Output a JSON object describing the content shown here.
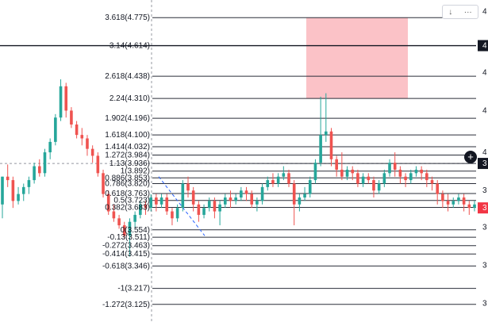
{
  "chart_data": {
    "type": "candlestick",
    "overlay": "fibonacci-retracement",
    "fib_levels": [
      {
        "label": "3.618(4.775)",
        "price": 4.775
      },
      {
        "label": "3.14(4.614)",
        "price": 4.614
      },
      {
        "label": "2.618(4.438)",
        "price": 4.438
      },
      {
        "label": "2.24(4.310)",
        "price": 4.31
      },
      {
        "label": "1.902(4.196)",
        "price": 4.196
      },
      {
        "label": "1.618(4.100)",
        "price": 4.1
      },
      {
        "label": "1.414(4.032)",
        "price": 4.032
      },
      {
        "label": "1.272(3.984)",
        "price": 3.984
      },
      {
        "label": "1.13(3.936)",
        "price": 3.936
      },
      {
        "label": "1(3.892)",
        "price": 3.892
      },
      {
        "label": "0.886(3.853)",
        "price": 3.853
      },
      {
        "label": "0.786(3.820)",
        "price": 3.82
      },
      {
        "label": "0.618(3.763)",
        "price": 3.763
      },
      {
        "label": "0.5(3.723)",
        "price": 3.723
      },
      {
        "label": "0.382(3.683)",
        "price": 3.683
      },
      {
        "label": "0(3.554)",
        "price": 3.554
      },
      {
        "label": "-0.13(3.511)",
        "price": 3.511
      },
      {
        "label": "-0.272(3.463)",
        "price": 3.463
      },
      {
        "label": "-0.414(3.415)",
        "price": 3.415
      },
      {
        "label": "-0.618(3.346)",
        "price": 3.346
      },
      {
        "label": "-1(3.217)",
        "price": 3.217
      },
      {
        "label": "-1.272(3.125)",
        "price": 3.125
      }
    ],
    "price_range": [
      3.06,
      4.84
    ],
    "right_axis_tags": [
      {
        "text": "4",
        "price": 4.614,
        "style": "dark"
      },
      {
        "text": "3",
        "price": 3.936,
        "style": "dark"
      },
      {
        "text": "3",
        "price": 3.68,
        "style": "red"
      }
    ],
    "right_axis_ticks": [
      {
        "text": "4",
        "price": 4.81
      },
      {
        "text": "4",
        "price": 4.46
      },
      {
        "text": "4",
        "price": 4.24
      },
      {
        "text": "4",
        "price": 4.0
      },
      {
        "text": "3",
        "price": 3.78
      },
      {
        "text": "3",
        "price": 3.57
      },
      {
        "text": "3",
        "price": 3.35
      },
      {
        "text": "3",
        "price": 3.13
      }
    ],
    "current_price_line": 3.936,
    "highlight_zone": {
      "price_top": 4.775,
      "price_bottom": 4.31,
      "color": "#f23645"
    },
    "candles": [
      [
        3.7,
        3.86,
        3.86,
        3.62
      ],
      [
        3.86,
        3.84,
        3.93,
        3.8
      ],
      [
        3.84,
        3.72,
        3.86,
        3.68
      ],
      [
        3.72,
        3.76,
        3.8,
        3.7
      ],
      [
        3.76,
        3.8,
        3.82,
        3.72
      ],
      [
        3.8,
        3.84,
        3.86,
        3.76
      ],
      [
        3.84,
        3.92,
        3.94,
        3.82
      ],
      [
        3.92,
        3.88,
        3.96,
        3.86
      ],
      [
        3.88,
        4.0,
        4.02,
        3.86
      ],
      [
        4.0,
        4.06,
        4.08,
        3.96
      ],
      [
        4.06,
        4.2,
        4.22,
        4.04
      ],
      [
        4.2,
        4.38,
        4.42,
        4.18
      ],
      [
        4.38,
        4.24,
        4.4,
        4.2
      ],
      [
        4.24,
        4.16,
        4.26,
        4.14
      ],
      [
        4.16,
        4.1,
        4.18,
        4.08
      ],
      [
        4.1,
        4.08,
        4.14,
        4.04
      ],
      [
        4.08,
        4.02,
        4.1,
        3.98
      ],
      [
        4.02,
        3.98,
        4.04,
        3.94
      ],
      [
        3.98,
        3.88,
        4.0,
        3.86
      ],
      [
        3.88,
        3.76,
        3.9,
        3.74
      ],
      [
        3.76,
        3.66,
        3.78,
        3.64
      ],
      [
        3.66,
        3.62,
        3.7,
        3.6
      ],
      [
        3.62,
        3.58,
        3.64,
        3.56
      ],
      [
        3.58,
        3.52,
        3.6,
        3.5
      ],
      [
        3.52,
        3.6,
        3.62,
        3.4
      ],
      [
        3.6,
        3.64,
        3.66,
        3.56
      ],
      [
        3.64,
        3.7,
        3.72,
        3.62
      ],
      [
        3.7,
        3.68,
        3.72,
        3.64
      ],
      [
        3.68,
        3.74,
        3.76,
        3.66
      ],
      [
        3.74,
        3.7,
        3.76,
        3.66
      ],
      [
        3.7,
        3.74,
        3.76,
        3.68
      ],
      [
        3.74,
        3.66,
        3.76,
        3.64
      ],
      [
        3.66,
        3.62,
        3.68,
        3.58
      ],
      [
        3.62,
        3.68,
        3.7,
        3.6
      ],
      [
        3.68,
        3.82,
        3.84,
        3.66
      ],
      [
        3.82,
        3.78,
        3.86,
        3.74
      ],
      [
        3.78,
        3.7,
        3.8,
        3.66
      ],
      [
        3.7,
        3.64,
        3.72,
        3.6
      ],
      [
        3.64,
        3.68,
        3.7,
        3.62
      ],
      [
        3.68,
        3.72,
        3.74,
        3.66
      ],
      [
        3.72,
        3.66,
        3.74,
        3.62
      ],
      [
        3.66,
        3.7,
        3.72,
        3.58
      ],
      [
        3.7,
        3.74,
        3.76,
        3.68
      ],
      [
        3.74,
        3.72,
        3.78,
        3.68
      ],
      [
        3.72,
        3.74,
        3.76,
        3.7
      ],
      [
        3.74,
        3.78,
        3.8,
        3.72
      ],
      [
        3.78,
        3.76,
        3.8,
        3.72
      ],
      [
        3.76,
        3.7,
        3.78,
        3.68
      ],
      [
        3.7,
        3.72,
        3.74,
        3.66
      ],
      [
        3.72,
        3.8,
        3.82,
        3.7
      ],
      [
        3.8,
        3.84,
        3.86,
        3.78
      ],
      [
        3.84,
        3.82,
        3.88,
        3.8
      ],
      [
        3.82,
        3.86,
        3.88,
        3.8
      ],
      [
        3.86,
        3.88,
        3.92,
        3.84
      ],
      [
        3.88,
        3.82,
        3.9,
        3.8
      ],
      [
        3.82,
        3.7,
        3.84,
        3.58
      ],
      [
        3.7,
        3.74,
        3.76,
        3.66
      ],
      [
        3.74,
        3.76,
        3.8,
        3.72
      ],
      [
        3.76,
        3.84,
        3.86,
        3.74
      ],
      [
        3.84,
        3.94,
        3.96,
        3.82
      ],
      [
        3.94,
        4.1,
        4.32,
        3.92
      ],
      [
        4.1,
        4.12,
        4.34,
        4.06
      ],
      [
        4.12,
        3.96,
        4.14,
        3.92
      ],
      [
        3.96,
        3.9,
        3.98,
        3.86
      ],
      [
        3.9,
        3.86,
        4.0,
        3.84
      ],
      [
        3.86,
        3.9,
        3.92,
        3.84
      ],
      [
        3.9,
        3.88,
        3.92,
        3.84
      ],
      [
        3.88,
        3.82,
        3.9,
        3.8
      ],
      [
        3.82,
        3.86,
        3.88,
        3.8
      ],
      [
        3.86,
        3.84,
        3.88,
        3.82
      ],
      [
        3.84,
        3.78,
        3.86,
        3.74
      ],
      [
        3.78,
        3.82,
        3.84,
        3.76
      ],
      [
        3.82,
        3.88,
        3.9,
        3.8
      ],
      [
        3.88,
        3.94,
        3.96,
        3.86
      ],
      [
        3.94,
        3.9,
        4.0,
        3.86
      ],
      [
        3.9,
        3.86,
        3.92,
        3.82
      ],
      [
        3.86,
        3.84,
        3.88,
        3.8
      ],
      [
        3.84,
        3.88,
        3.9,
        3.82
      ],
      [
        3.88,
        3.9,
        3.92,
        3.86
      ],
      [
        3.9,
        3.88,
        3.92,
        3.84
      ],
      [
        3.88,
        3.84,
        3.9,
        3.8
      ],
      [
        3.84,
        3.82,
        3.86,
        3.78
      ],
      [
        3.82,
        3.76,
        3.84,
        3.7
      ],
      [
        3.76,
        3.72,
        3.78,
        3.68
      ],
      [
        3.72,
        3.7,
        3.76,
        3.66
      ],
      [
        3.7,
        3.72,
        3.74,
        3.68
      ],
      [
        3.72,
        3.74,
        3.76,
        3.7
      ],
      [
        3.74,
        3.7,
        3.76,
        3.66
      ],
      [
        3.7,
        3.68,
        3.72,
        3.64
      ],
      [
        3.68,
        3.7,
        3.72,
        3.66
      ]
    ]
  },
  "toolbar": {
    "down_label": "↓",
    "more_label": "···"
  },
  "add_button": {
    "label": "+"
  }
}
